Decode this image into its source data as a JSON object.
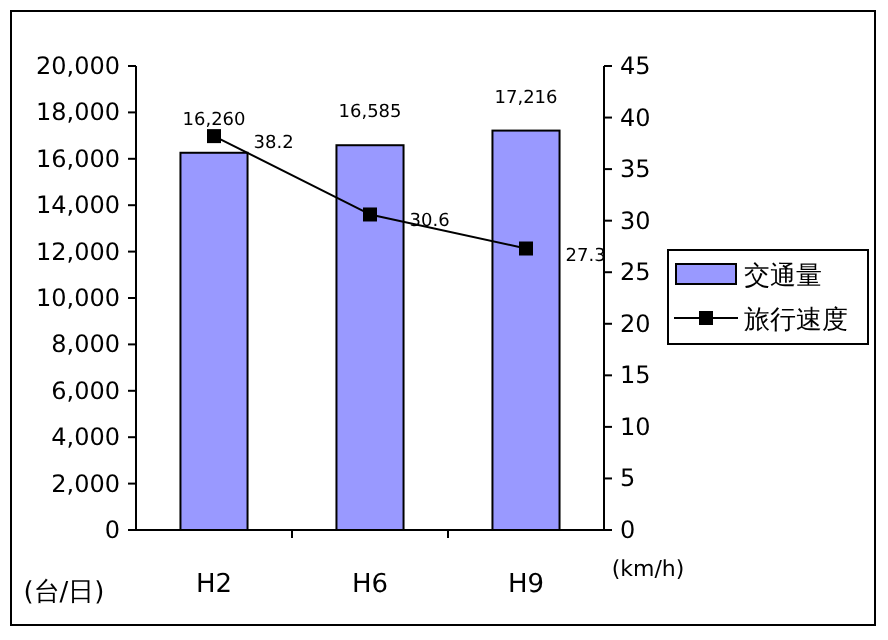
{
  "chart_data": {
    "type": "bar",
    "categories": [
      "H2",
      "H6",
      "H9"
    ],
    "ylabel": "(台/日)",
    "y2label": "(km/h)",
    "ylim": [
      0,
      20000
    ],
    "yticks": [
      {
        "value": 0,
        "label": "0"
      },
      {
        "value": 2000,
        "label": "2,000"
      },
      {
        "value": 4000,
        "label": "4,000"
      },
      {
        "value": 6000,
        "label": "6,000"
      },
      {
        "value": 8000,
        "label": "8,000"
      },
      {
        "value": 10000,
        "label": "10,000"
      },
      {
        "value": 12000,
        "label": "12,000"
      },
      {
        "value": 14000,
        "label": "14,000"
      },
      {
        "value": 16000,
        "label": "16,000"
      },
      {
        "value": 18000,
        "label": "18,000"
      },
      {
        "value": 20000,
        "label": "20,000"
      }
    ],
    "y2lim": [
      0,
      45
    ],
    "y2ticks": [
      0,
      5,
      10,
      15,
      20,
      25,
      30,
      35,
      40,
      45
    ],
    "series": [
      {
        "name": "交通量",
        "color": "#9999ff",
        "values": [
          16260,
          16585,
          17216
        ],
        "value_labels": [
          "16,260",
          "16,585",
          "17,216"
        ]
      },
      {
        "name": "旅行速度",
        "type": "line",
        "axis": "y2",
        "color": "#000000",
        "values": [
          38.2,
          30.6,
          27.3
        ],
        "value_labels": [
          "38.2",
          "30.6",
          "27.3"
        ]
      }
    ],
    "marker": "square",
    "line_style": "solid",
    "legend": "right",
    "grid": false
  }
}
